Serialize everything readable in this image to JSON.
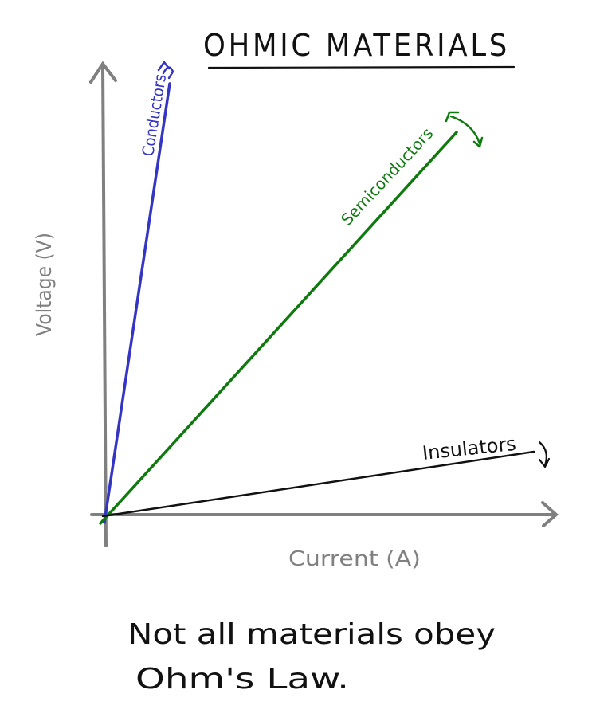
{
  "title": "OHMIC MATERIALS",
  "axes": {
    "x_label": "Current (A)",
    "y_label": "Voltage (V)",
    "axis_color": "#808080"
  },
  "lines": {
    "conductors": {
      "label": "Conductors",
      "color": "#3535c4"
    },
    "semiconductors": {
      "label": "Semiconductors",
      "color": "#0e7a0e"
    },
    "insulators": {
      "label": "Insulators",
      "color": "#111111"
    }
  },
  "note": {
    "line1": "Not all materials obey",
    "line2": "Ohm's Law."
  }
}
